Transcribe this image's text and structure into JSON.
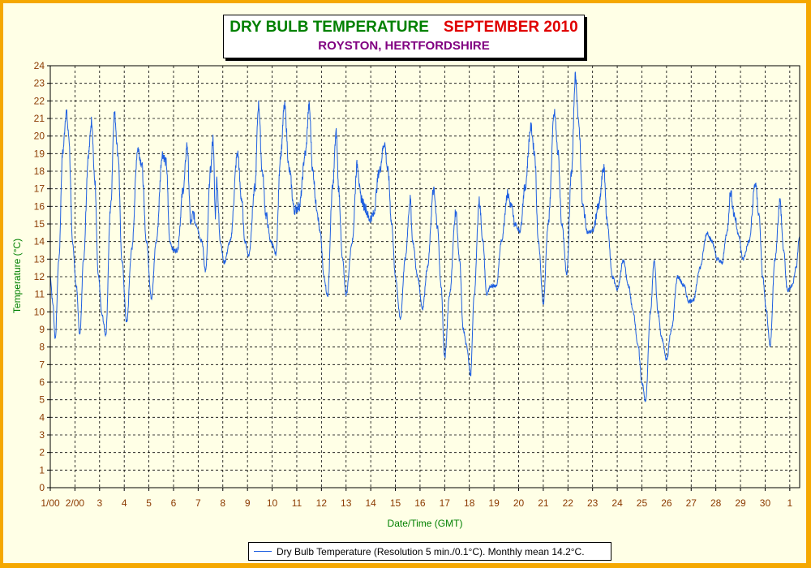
{
  "title": {
    "main": "DRY BULB TEMPERATURE",
    "period": "SEPTEMBER 2010",
    "subtitle": "ROYSTON, HERTFORDSHIRE"
  },
  "colors": {
    "line": "#1e5fe0",
    "title_main": "#008000",
    "title_period": "#e00000",
    "subtitle": "#800080",
    "axis_label": "#008000",
    "tick_label": "#8b3a00",
    "background": "#ffffe6",
    "border": "#f5a800"
  },
  "legend": {
    "text": "Dry Bulb Temperature (Resolution 5 min./0.1°C). Monthly mean 14.2°C."
  },
  "chart_data": {
    "type": "line",
    "xlabel": "Date/Time (GMT)",
    "ylabel": "Temperature (°C)",
    "ylim": [
      0,
      24
    ],
    "xlim": [
      1,
      31.4
    ],
    "grid": true,
    "legend_position": "bottom-center",
    "y_ticks": [
      0,
      1,
      2,
      3,
      4,
      5,
      6,
      7,
      8,
      9,
      10,
      11,
      12,
      13,
      14,
      15,
      16,
      17,
      18,
      19,
      20,
      21,
      22,
      23,
      24
    ],
    "x_ticks": [
      {
        "x": 1,
        "label": "1/00"
      },
      {
        "x": 2,
        "label": "2/00"
      },
      {
        "x": 3,
        "label": "3"
      },
      {
        "x": 4,
        "label": "4"
      },
      {
        "x": 5,
        "label": "5"
      },
      {
        "x": 6,
        "label": "6"
      },
      {
        "x": 7,
        "label": "7"
      },
      {
        "x": 8,
        "label": "8"
      },
      {
        "x": 9,
        "label": "9"
      },
      {
        "x": 10,
        "label": "10"
      },
      {
        "x": 11,
        "label": "11"
      },
      {
        "x": 12,
        "label": "12"
      },
      {
        "x": 13,
        "label": "13"
      },
      {
        "x": 14,
        "label": "14"
      },
      {
        "x": 15,
        "label": "15"
      },
      {
        "x": 16,
        "label": "16"
      },
      {
        "x": 17,
        "label": "17"
      },
      {
        "x": 18,
        "label": "18"
      },
      {
        "x": 19,
        "label": "19"
      },
      {
        "x": 20,
        "label": "20"
      },
      {
        "x": 21,
        "label": "21"
      },
      {
        "x": 22,
        "label": "22"
      },
      {
        "x": 23,
        "label": "23"
      },
      {
        "x": 24,
        "label": "24"
      },
      {
        "x": 25,
        "label": "25"
      },
      {
        "x": 26,
        "label": "26"
      },
      {
        "x": 27,
        "label": "27"
      },
      {
        "x": 28,
        "label": "28"
      },
      {
        "x": 29,
        "label": "29"
      },
      {
        "x": 30,
        "label": "30"
      },
      {
        "x": 31,
        "label": "1"
      }
    ],
    "series": [
      {
        "values": [
          [
            1.0,
            12.0
          ],
          [
            1.1,
            10.5
          ],
          [
            1.2,
            8.5
          ],
          [
            1.35,
            13.0
          ],
          [
            1.5,
            19.0
          ],
          [
            1.65,
            21.4
          ],
          [
            1.75,
            20.0
          ],
          [
            1.9,
            14.0
          ],
          [
            2.05,
            11.5
          ],
          [
            2.2,
            8.7
          ],
          [
            2.35,
            13.0
          ],
          [
            2.55,
            19.0
          ],
          [
            2.68,
            20.9
          ],
          [
            2.8,
            17.5
          ],
          [
            2.95,
            12.0
          ],
          [
            3.1,
            9.8
          ],
          [
            3.25,
            8.7
          ],
          [
            3.45,
            16.0
          ],
          [
            3.6,
            21.3
          ],
          [
            3.75,
            19.0
          ],
          [
            3.9,
            13.0
          ],
          [
            4.1,
            9.4
          ],
          [
            4.3,
            13.5
          ],
          [
            4.55,
            19.3
          ],
          [
            4.7,
            18.5
          ],
          [
            4.9,
            14.0
          ],
          [
            5.1,
            10.8
          ],
          [
            5.3,
            14.0
          ],
          [
            5.55,
            19.0
          ],
          [
            5.7,
            18.5
          ],
          [
            5.85,
            14.0
          ],
          [
            6.0,
            13.5
          ],
          [
            6.15,
            13.5
          ],
          [
            6.4,
            17.0
          ],
          [
            6.55,
            19.5
          ],
          [
            6.7,
            15.0
          ],
          [
            6.8,
            15.6
          ],
          [
            6.9,
            15.0
          ],
          [
            7.15,
            14.0
          ],
          [
            7.3,
            12.3
          ],
          [
            7.5,
            18.0
          ],
          [
            7.6,
            19.9
          ],
          [
            7.7,
            15.5
          ],
          [
            7.75,
            17.5
          ],
          [
            7.9,
            14.0
          ],
          [
            8.05,
            12.8
          ],
          [
            8.3,
            14.0
          ],
          [
            8.6,
            19.0
          ],
          [
            8.75,
            16.5
          ],
          [
            8.9,
            14.0
          ],
          [
            9.05,
            13.2
          ],
          [
            9.3,
            17.0
          ],
          [
            9.45,
            21.8
          ],
          [
            9.6,
            18.0
          ],
          [
            9.75,
            15.5
          ],
          [
            9.95,
            14.0
          ],
          [
            10.15,
            13.3
          ],
          [
            10.35,
            19.0
          ],
          [
            10.5,
            21.7
          ],
          [
            10.7,
            18.0
          ],
          [
            10.9,
            15.8
          ],
          [
            11.1,
            16.0
          ],
          [
            11.35,
            19.0
          ],
          [
            11.5,
            21.7
          ],
          [
            11.65,
            18.0
          ],
          [
            11.8,
            16.0
          ],
          [
            11.95,
            14.5
          ],
          [
            12.1,
            12.0
          ],
          [
            12.25,
            10.9
          ],
          [
            12.45,
            17.0
          ],
          [
            12.6,
            20.2
          ],
          [
            12.7,
            17.0
          ],
          [
            12.85,
            13.0
          ],
          [
            13.0,
            11.0
          ],
          [
            13.25,
            14.0
          ],
          [
            13.45,
            18.4
          ],
          [
            13.6,
            16.5
          ],
          [
            13.75,
            16.0
          ],
          [
            13.95,
            15.3
          ],
          [
            14.1,
            15.5
          ],
          [
            14.35,
            18.0
          ],
          [
            14.55,
            19.6
          ],
          [
            14.7,
            18.0
          ],
          [
            14.85,
            15.0
          ],
          [
            15.0,
            12.0
          ],
          [
            15.2,
            9.6
          ],
          [
            15.4,
            13.0
          ],
          [
            15.6,
            16.4
          ],
          [
            15.7,
            14.0
          ],
          [
            15.9,
            12.0
          ],
          [
            16.1,
            10.2
          ],
          [
            16.3,
            12.5
          ],
          [
            16.55,
            16.9
          ],
          [
            16.7,
            15.0
          ],
          [
            16.85,
            11.5
          ],
          [
            17.0,
            7.4
          ],
          [
            17.2,
            11.0
          ],
          [
            17.45,
            15.7
          ],
          [
            17.6,
            13.0
          ],
          [
            17.75,
            9.0
          ],
          [
            17.9,
            8.0
          ],
          [
            18.05,
            6.4
          ],
          [
            18.2,
            11.0
          ],
          [
            18.4,
            16.3
          ],
          [
            18.55,
            14.0
          ],
          [
            18.7,
            11.0
          ],
          [
            18.9,
            11.5
          ],
          [
            19.1,
            11.5
          ],
          [
            19.3,
            14.0
          ],
          [
            19.55,
            16.7
          ],
          [
            19.7,
            16.0
          ],
          [
            19.85,
            15.0
          ],
          [
            20.05,
            14.6
          ],
          [
            20.25,
            17.0
          ],
          [
            20.5,
            20.5
          ],
          [
            20.65,
            19.0
          ],
          [
            20.8,
            14.0
          ],
          [
            21.0,
            10.5
          ],
          [
            21.2,
            15.0
          ],
          [
            21.45,
            21.3
          ],
          [
            21.6,
            19.0
          ],
          [
            21.75,
            15.0
          ],
          [
            21.95,
            12.2
          ],
          [
            22.15,
            18.0
          ],
          [
            22.3,
            23.4
          ],
          [
            22.45,
            20.5
          ],
          [
            22.6,
            16.0
          ],
          [
            22.8,
            14.5
          ],
          [
            23.0,
            14.6
          ],
          [
            23.25,
            16.0
          ],
          [
            23.45,
            18.2
          ],
          [
            23.6,
            15.0
          ],
          [
            23.8,
            12.0
          ],
          [
            24.0,
            11.3
          ],
          [
            24.25,
            12.9
          ],
          [
            24.45,
            11.5
          ],
          [
            24.65,
            10.0
          ],
          [
            24.85,
            8.0
          ],
          [
            25.0,
            6.0
          ],
          [
            25.15,
            4.9
          ],
          [
            25.35,
            10.0
          ],
          [
            25.5,
            13.0
          ],
          [
            25.65,
            10.0
          ],
          [
            25.8,
            8.5
          ],
          [
            26.0,
            7.3
          ],
          [
            26.2,
            9.0
          ],
          [
            26.45,
            12.0
          ],
          [
            26.7,
            11.5
          ],
          [
            26.9,
            10.6
          ],
          [
            27.1,
            10.7
          ],
          [
            27.35,
            12.5
          ],
          [
            27.65,
            14.5
          ],
          [
            27.85,
            14.0
          ],
          [
            28.05,
            13.0
          ],
          [
            28.25,
            12.8
          ],
          [
            28.45,
            14.5
          ],
          [
            28.6,
            16.8
          ],
          [
            28.75,
            15.5
          ],
          [
            28.9,
            14.5
          ],
          [
            29.1,
            13.0
          ],
          [
            29.35,
            14.0
          ],
          [
            29.6,
            17.3
          ],
          [
            29.75,
            15.5
          ],
          [
            29.9,
            12.0
          ],
          [
            30.05,
            10.0
          ],
          [
            30.2,
            8.0
          ],
          [
            30.4,
            13.0
          ],
          [
            30.6,
            16.3
          ],
          [
            30.75,
            13.5
          ],
          [
            30.9,
            11.2
          ],
          [
            31.1,
            11.5
          ],
          [
            31.25,
            12.5
          ],
          [
            31.4,
            14.3
          ]
        ]
      }
    ]
  }
}
